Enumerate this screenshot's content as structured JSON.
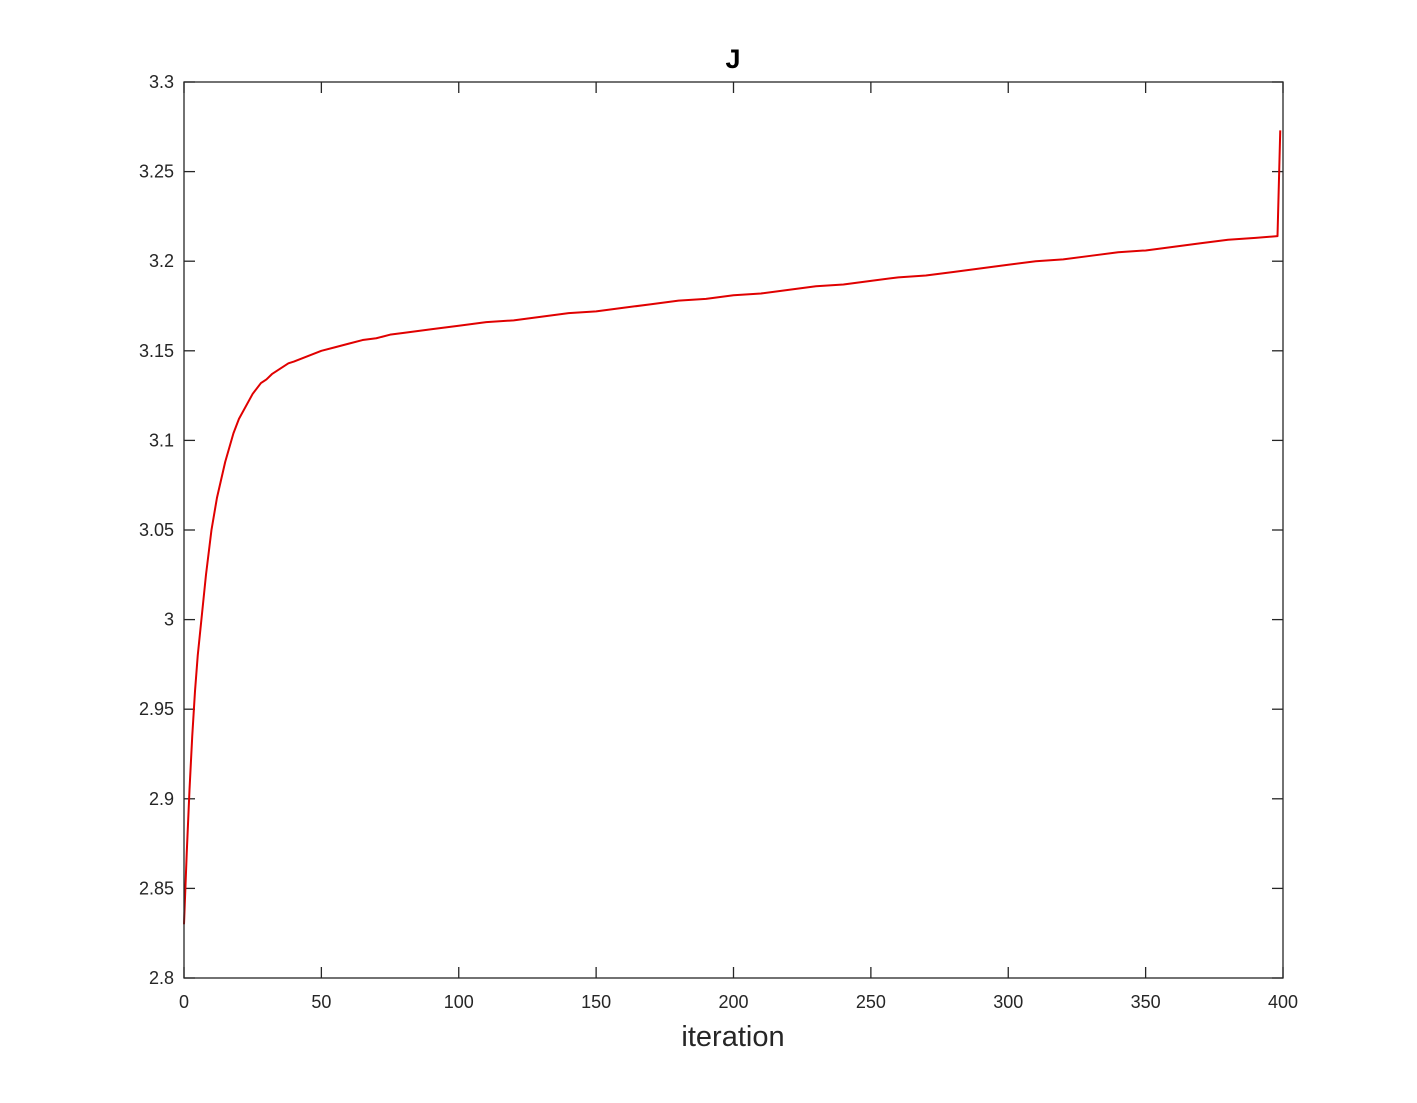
{
  "chart_data": {
    "type": "line",
    "title": "J",
    "xlabel": "iteration",
    "ylabel": "",
    "xlim": [
      0,
      400
    ],
    "ylim": [
      2.8,
      3.3
    ],
    "x_ticks": [
      "0",
      "50",
      "100",
      "150",
      "200",
      "250",
      "300",
      "350",
      "400"
    ],
    "y_ticks": [
      "2.8",
      "2.85",
      "2.9",
      "2.95",
      "3",
      "3.05",
      "3.1",
      "3.15",
      "3.2",
      "3.25",
      "3.3"
    ],
    "grid": false,
    "series": [
      {
        "color": "#e00000",
        "x": [
          0,
          1,
          2,
          3,
          4,
          5,
          6,
          8,
          10,
          12,
          15,
          18,
          20,
          25,
          28,
          30,
          32,
          35,
          38,
          40,
          45,
          50,
          55,
          60,
          65,
          70,
          75,
          80,
          90,
          100,
          110,
          120,
          130,
          140,
          150,
          160,
          170,
          180,
          190,
          200,
          210,
          220,
          230,
          240,
          250,
          260,
          270,
          280,
          290,
          300,
          310,
          320,
          330,
          340,
          350,
          360,
          370,
          380,
          390,
          398,
          399
        ],
        "y": [
          2.83,
          2.87,
          2.905,
          2.935,
          2.96,
          2.98,
          2.995,
          3.025,
          3.05,
          3.068,
          3.088,
          3.104,
          3.112,
          3.126,
          3.132,
          3.134,
          3.137,
          3.14,
          3.143,
          3.144,
          3.147,
          3.15,
          3.152,
          3.154,
          3.156,
          3.157,
          3.159,
          3.16,
          3.162,
          3.164,
          3.166,
          3.167,
          3.169,
          3.171,
          3.172,
          3.174,
          3.176,
          3.178,
          3.179,
          3.181,
          3.182,
          3.184,
          3.186,
          3.187,
          3.189,
          3.191,
          3.192,
          3.194,
          3.196,
          3.198,
          3.2,
          3.201,
          3.203,
          3.205,
          3.206,
          3.208,
          3.21,
          3.212,
          3.213,
          3.214,
          3.273
        ]
      }
    ]
  }
}
